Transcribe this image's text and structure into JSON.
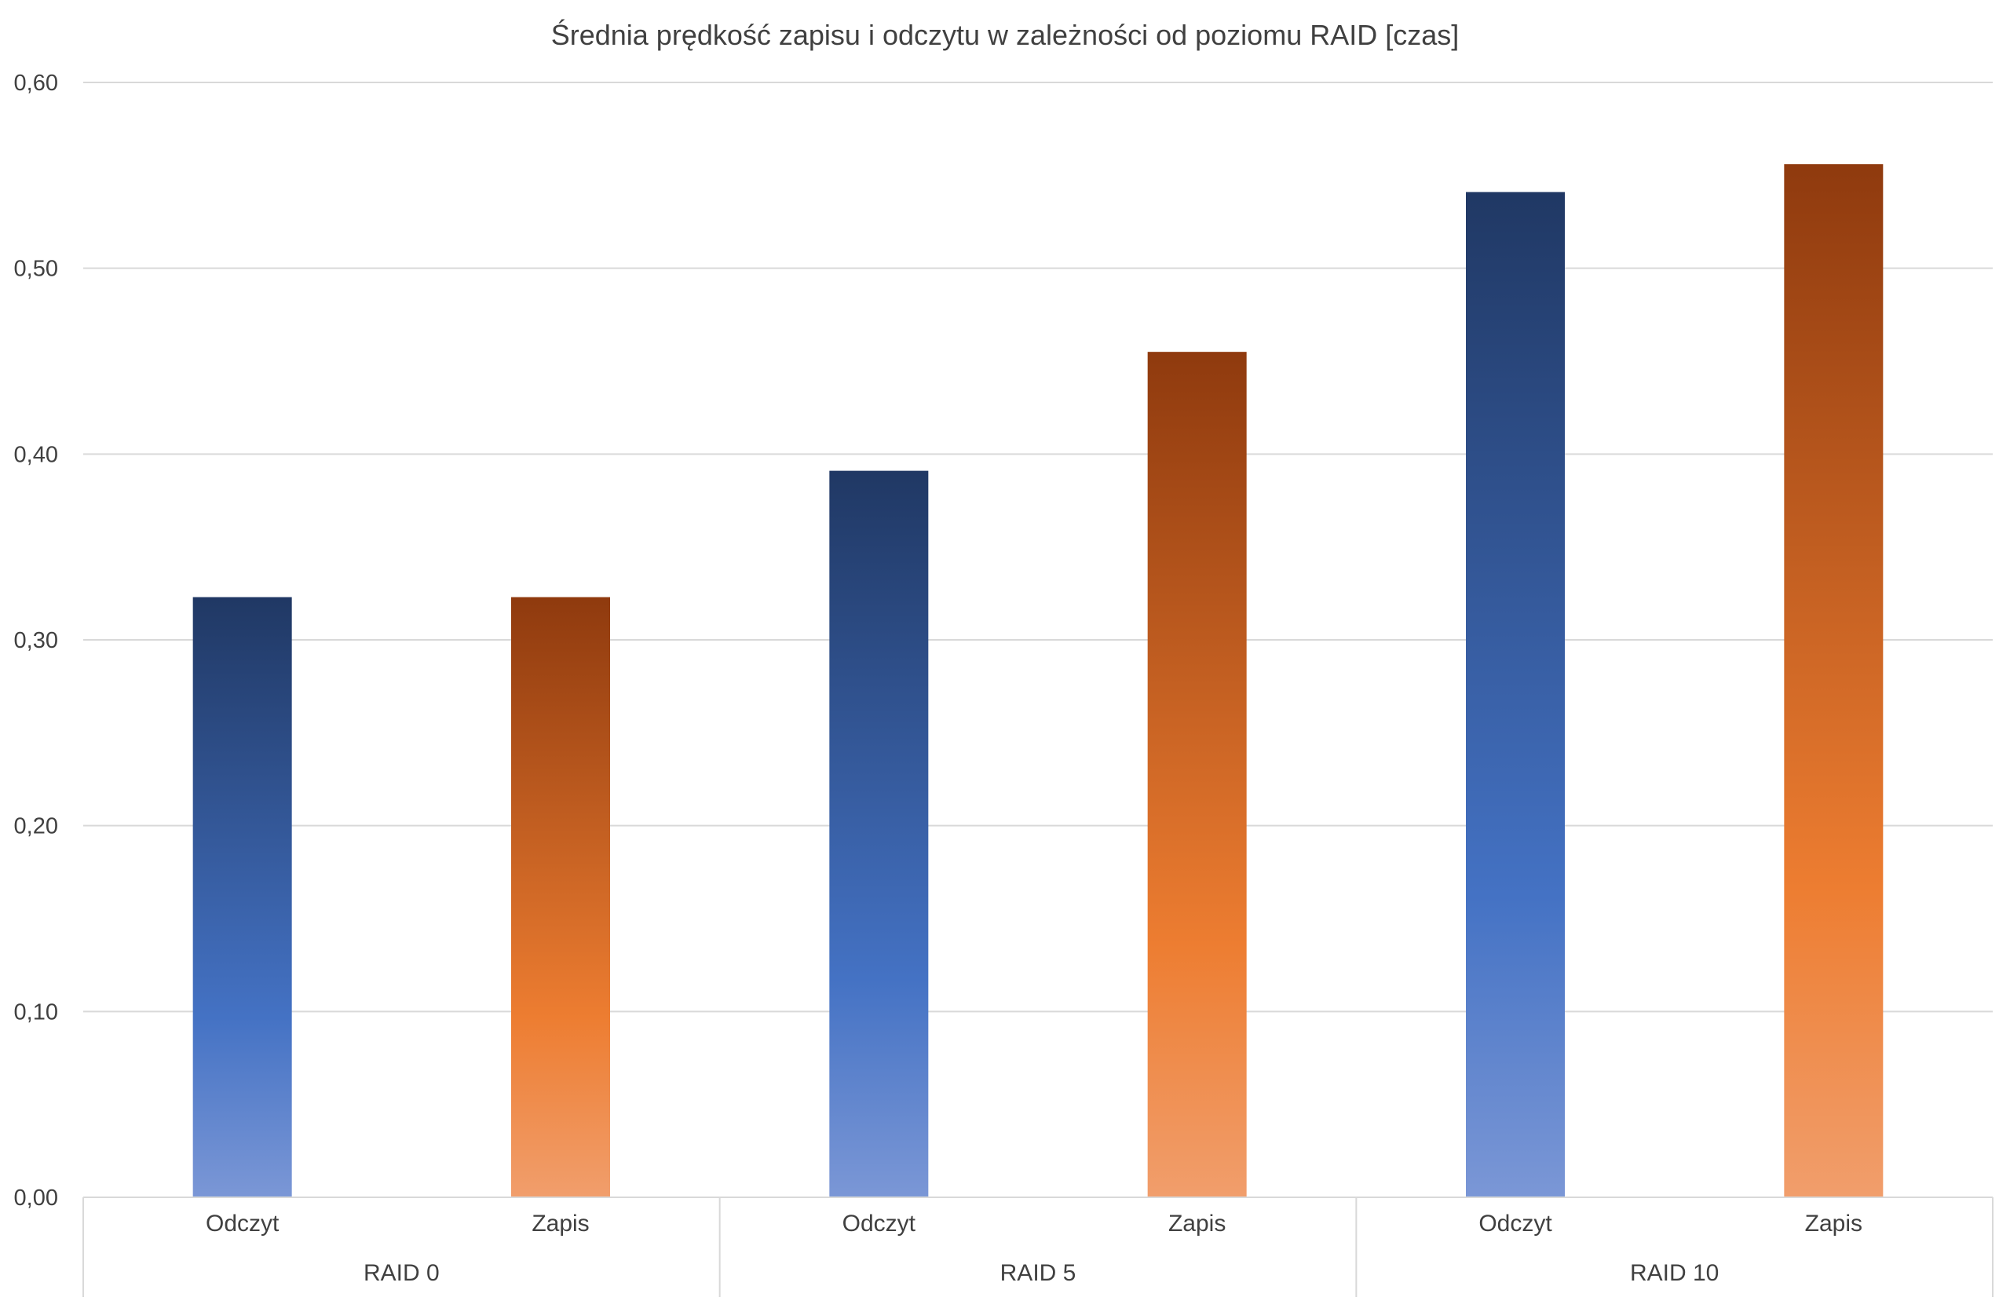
{
  "chart_data": {
    "type": "bar",
    "title": "Średnia prędkość zapisu i odczytu w zależności od poziomu RAID [czas]",
    "xlabel": "",
    "ylabel": "",
    "ylim": [
      0,
      0.6
    ],
    "y_ticks": [
      "0,00",
      "0,10",
      "0,20",
      "0,30",
      "0,40",
      "0,50",
      "0,60"
    ],
    "grid": true,
    "legend": "none",
    "groups": [
      {
        "label": "RAID 0",
        "bars": [
          {
            "label": "Odczyt",
            "value": 0.323,
            "series": "read"
          },
          {
            "label": "Zapis",
            "value": 0.323,
            "series": "write"
          }
        ]
      },
      {
        "label": "RAID 5",
        "bars": [
          {
            "label": "Odczyt",
            "value": 0.391,
            "series": "read"
          },
          {
            "label": "Zapis",
            "value": 0.455,
            "series": "write"
          }
        ]
      },
      {
        "label": "RAID 10",
        "bars": [
          {
            "label": "Odczyt",
            "value": 0.541,
            "series": "read"
          },
          {
            "label": "Zapis",
            "value": 0.556,
            "series": "write"
          }
        ]
      }
    ],
    "colors": {
      "read_top": "#203864",
      "read_mid": "#4472C4",
      "read_bottom": "#7B97D6",
      "write_top": "#8F3A0E",
      "write_mid": "#ED7D31",
      "write_bottom": "#F19E6C",
      "gridline": "#D9D9D9",
      "text": "#404040"
    }
  }
}
